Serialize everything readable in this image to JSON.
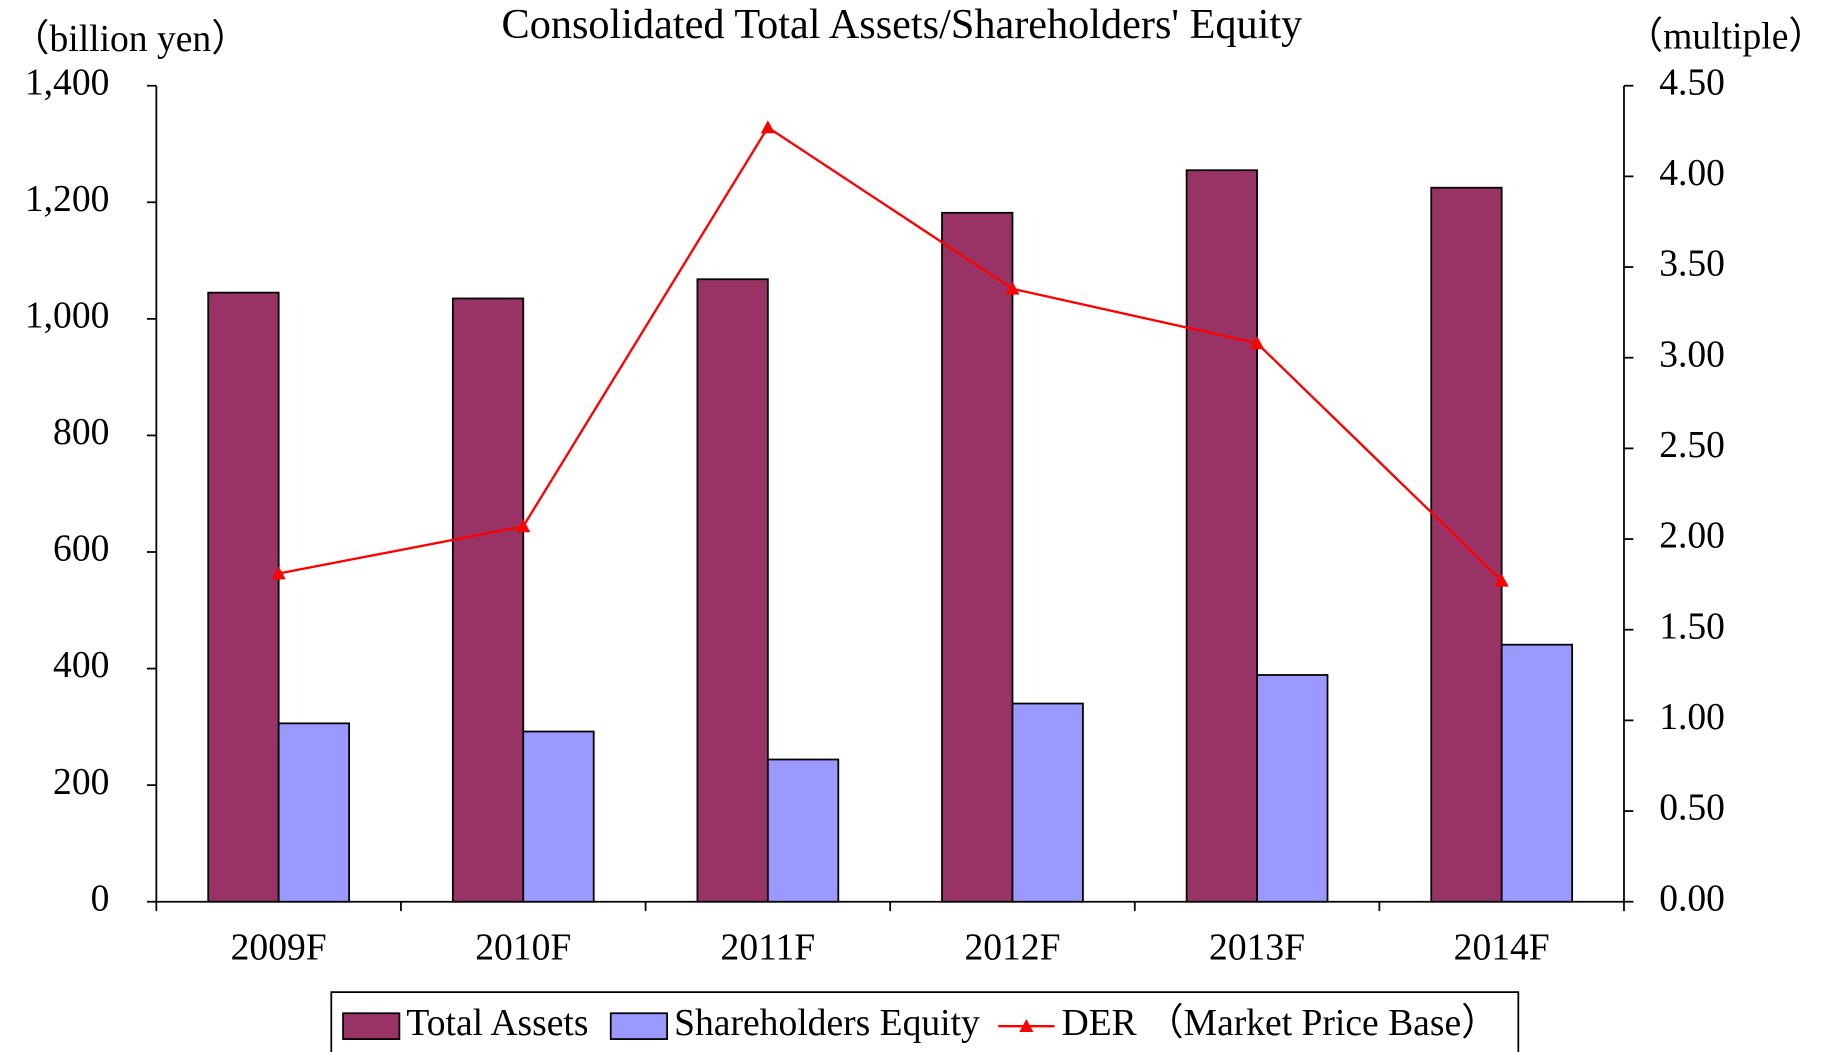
{
  "chart_data": {
    "type": "bar",
    "title": "Consolidated Total Assets/Shareholders' Equity",
    "y_label": "（billion yen）",
    "y2_label": "（multiple）",
    "categories": [
      "2009F",
      "2010F",
      "2011F",
      "2012F",
      "2013F",
      "2014F"
    ],
    "series": [
      {
        "name": "Total Assets",
        "type": "bar",
        "color": "#993366",
        "values": [
          1045,
          1035,
          1068,
          1182,
          1255,
          1225
        ]
      },
      {
        "name": "Shareholders Equity",
        "type": "bar",
        "color": "#9999ff",
        "values": [
          306,
          292,
          244,
          340,
          389,
          441
        ]
      },
      {
        "name": "DER （Market Price Base）",
        "type": "line",
        "axis": "y2",
        "color": "#ff0000",
        "values": [
          1.81,
          2.07,
          4.27,
          3.38,
          3.08,
          1.77
        ]
      }
    ],
    "ylim": [
      0,
      1400
    ],
    "yticks": [
      0,
      200,
      400,
      600,
      800,
      {
        "value": 1000,
        "label": "1,000"
      },
      {
        "value": 1200,
        "label": "1,200"
      },
      {
        "value": 1400,
        "label": "1,400"
      }
    ],
    "y2lim": [
      0,
      4.5
    ],
    "y2ticks": [
      {
        "value": 0,
        "label": "0.00"
      },
      {
        "value": 0.5,
        "label": "0.50"
      },
      {
        "value": 1,
        "label": "1.00"
      },
      {
        "value": 1.5,
        "label": "1.50"
      },
      {
        "value": 2,
        "label": "2.00"
      },
      {
        "value": 2.5,
        "label": "2.50"
      },
      {
        "value": 3,
        "label": "3.00"
      },
      {
        "value": 3.5,
        "label": "3.50"
      },
      {
        "value": 4,
        "label": "4.00"
      },
      {
        "value": 4.5,
        "label": "4.50"
      }
    ],
    "legend": "bottom"
  }
}
